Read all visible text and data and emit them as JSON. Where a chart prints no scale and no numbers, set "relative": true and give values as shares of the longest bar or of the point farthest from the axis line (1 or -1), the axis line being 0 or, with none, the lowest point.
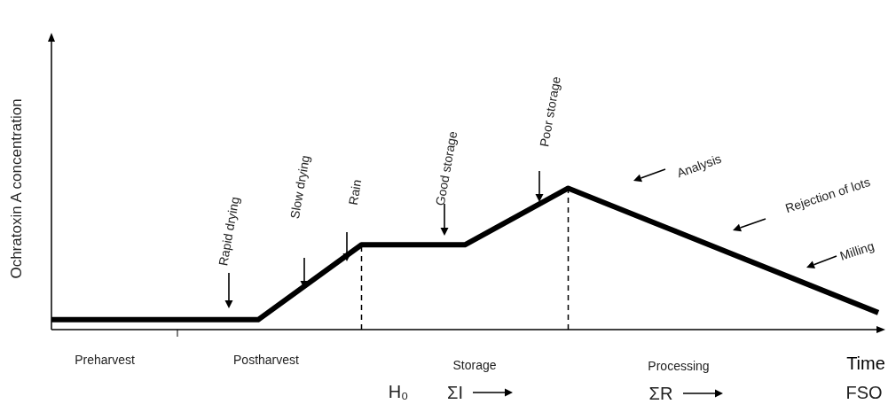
{
  "chart_data": {
    "type": "line",
    "relative": true,
    "xlabel": "Time",
    "ylabel": "Ochratoxin A concentration",
    "categories": [
      null,
      null,
      null,
      null,
      null,
      null,
      null,
      null,
      null,
      null,
      null,
      null,
      null,
      null,
      null,
      null,
      null
    ],
    "series": [
      {
        "color": "#000000",
        "values": [
          0.07,
          null,
          null,
          null,
          0.07,
          null,
          0.6,
          null,
          0.6,
          null,
          1,
          null,
          null,
          null,
          null,
          null,
          0.12
        ]
      }
    ],
    "annotations": [
      "Rapid drying",
      "Slow drying",
      "Rain",
      "Good storage",
      "Poor storage",
      "Analysis",
      "Rejection of lots",
      "Milling",
      "Preharvest",
      "Postharvest",
      "Storage",
      "Processing",
      "H₀",
      "ΣI",
      "ΣR",
      "FSO"
    ]
  }
}
